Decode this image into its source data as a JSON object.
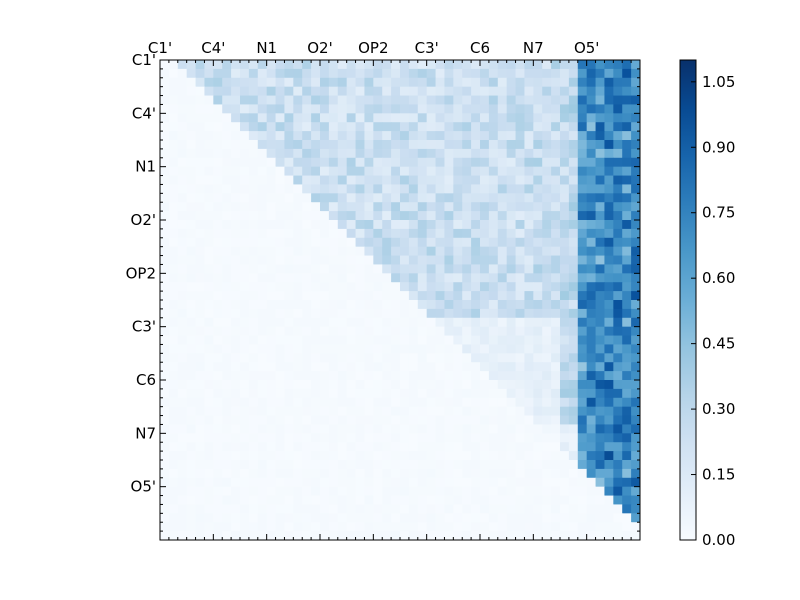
{
  "chart_data": {
    "type": "heatmap",
    "title": "",
    "xlabel": "",
    "ylabel": "",
    "n": 54,
    "tick_labels": [
      "C1'",
      "C4'",
      "N1",
      "O2'",
      "OP2",
      "C3'",
      "C6",
      "N7",
      "O5'"
    ],
    "colorbar": {
      "min": 0.0,
      "max": 1.1,
      "ticks": [
        "0.00",
        "0.15",
        "0.30",
        "0.45",
        "0.60",
        "0.75",
        "0.90",
        "1.05"
      ],
      "colormap": "Blues"
    },
    "x_axis_position": "top",
    "lower_triangle_value": 0.0,
    "grid": false
  }
}
